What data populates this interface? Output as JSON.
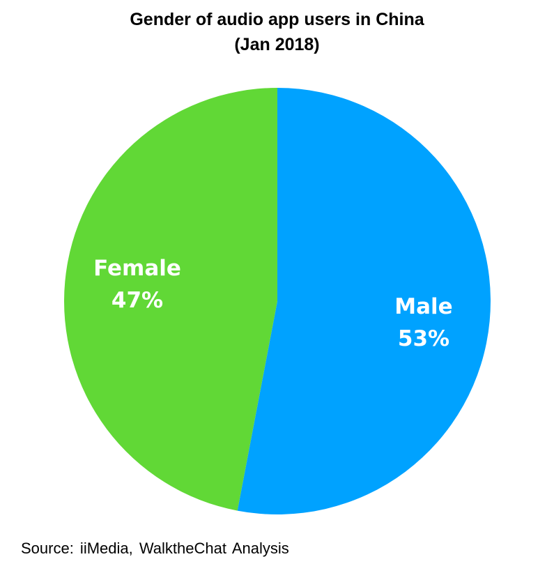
{
  "chart_data": {
    "type": "pie",
    "title_line1": "Gender of audio app users in China",
    "title_line2": "(Jan 2018)",
    "slices": [
      {
        "label": "Male",
        "value": 53,
        "value_label": "53%",
        "color": "#00A2FF"
      },
      {
        "label": "Female",
        "value": 47,
        "value_label": "47%",
        "color": "#61D836"
      }
    ],
    "start": "12 o'clock",
    "direction": "clockwise",
    "legend": "none",
    "source": "Source: iiMedia, WalktheChat Analysis"
  }
}
